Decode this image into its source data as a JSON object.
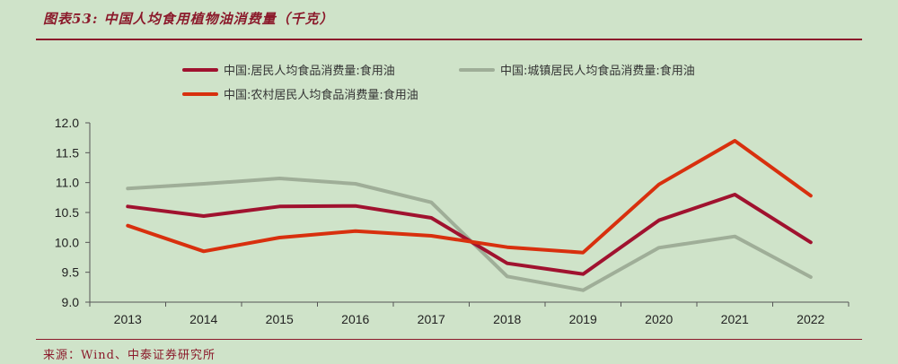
{
  "header": {
    "title": "图表53:  中国人均食用植物油消费量（千克）"
  },
  "footer": {
    "source": "来源：Wind、中泰证券研究所"
  },
  "colors": {
    "resident": "#a0122f",
    "urban": "#9fae98",
    "rural": "#d8300e",
    "accent": "#8b1a2b"
  },
  "chart_data": {
    "type": "line",
    "title": "图表53:  中国人均食用植物油消费量（千克）",
    "x": [
      "2013",
      "2014",
      "2015",
      "2016",
      "2017",
      "2018",
      "2019",
      "2020",
      "2021",
      "2022"
    ],
    "ylim": [
      9.0,
      12.0
    ],
    "yticks": [
      "9.0",
      "9.5",
      "10.0",
      "10.5",
      "11.0",
      "11.5",
      "12.0"
    ],
    "grid": false,
    "legend_position": "top",
    "series": [
      {
        "name": "中国:居民人均食品消费量:食用油",
        "color": "#a0122f",
        "values": [
          10.6,
          10.44,
          10.6,
          10.61,
          10.41,
          9.65,
          9.47,
          10.37,
          10.8,
          10.0
        ]
      },
      {
        "name": "中国:城镇居民人均食品消费量:食用油",
        "color": "#9fae98",
        "values": [
          10.9,
          10.98,
          11.07,
          10.98,
          10.67,
          9.43,
          9.2,
          9.91,
          10.1,
          9.42
        ]
      },
      {
        "name": "中国:农村居民人均食品消费量:食用油",
        "color": "#d8300e",
        "values": [
          10.28,
          9.85,
          10.08,
          10.19,
          10.11,
          9.92,
          9.83,
          10.97,
          11.7,
          10.78
        ]
      }
    ]
  }
}
